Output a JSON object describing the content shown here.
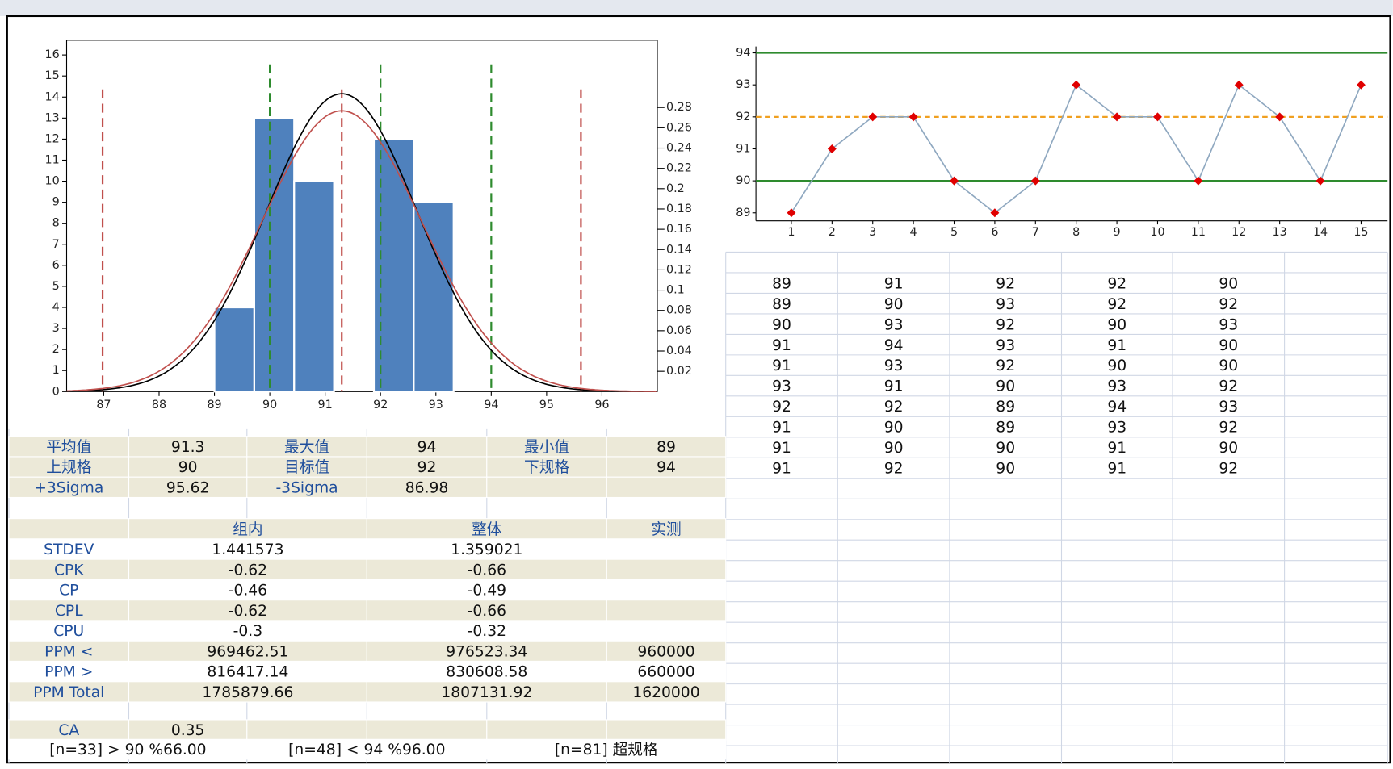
{
  "chart_data": [
    {
      "type": "histogram",
      "bins": [
        89,
        89.72,
        90.44,
        91.16,
        91.88,
        92.6,
        93.32
      ],
      "values": [
        4,
        13,
        10,
        0,
        12,
        9
      ],
      "color": "#4f81bd",
      "xlim": [
        86.33,
        97.0
      ],
      "xticks": [
        87,
        88,
        89,
        90,
        91,
        92,
        93,
        94,
        95,
        96
      ],
      "ylim": [
        0,
        16.7
      ],
      "yticks": [
        0,
        1,
        2,
        3,
        4,
        5,
        6,
        7,
        8,
        9,
        10,
        11,
        12,
        13,
        14,
        15,
        16
      ],
      "y2lim": [
        0,
        0.3463
      ],
      "y2ticks": [
        0.02,
        0.04,
        0.06,
        0.08,
        0.1,
        0.12,
        0.14,
        0.16,
        0.18,
        0.2,
        0.22,
        0.24,
        0.26,
        0.28
      ]
    },
    {
      "type": "line",
      "x": [
        1,
        2,
        3,
        4,
        5,
        6,
        7,
        8,
        9,
        10,
        11,
        12,
        13,
        14,
        15
      ],
      "values": [
        89,
        91,
        92,
        92,
        90,
        89,
        90,
        93,
        92,
        92,
        90,
        93,
        92,
        90,
        93
      ],
      "color": "#8fa8c0",
      "marker_color": "#e00000",
      "xlim": [
        0.13,
        15.65
      ],
      "xticks": [
        1,
        2,
        3,
        4,
        5,
        6,
        7,
        8,
        9,
        10,
        11,
        12,
        13,
        14,
        15
      ],
      "ylim": [
        88.75,
        94.2
      ],
      "yticks": [
        89,
        90,
        91,
        92,
        93,
        94
      ],
      "hlines": [
        {
          "value": 94,
          "color": "#2e8b2e"
        },
        {
          "value": 92,
          "color": "#f0a020"
        },
        {
          "value": 90,
          "color": "#2e8b2e"
        }
      ]
    }
  ],
  "stats": {
    "rows": [
      [
        "平均值",
        "91.3",
        "最大值",
        "94",
        "最小值",
        "89"
      ],
      [
        "上规格",
        "90",
        "目标值",
        "92",
        "下规格",
        "94"
      ],
      [
        "+3Sigma",
        "95.62",
        "-3Sigma",
        "86.98"
      ]
    ]
  },
  "capability": {
    "header": [
      "组内",
      "整体",
      "实测"
    ],
    "rows": [
      [
        "STDEV",
        "1.441573",
        "1.359021"
      ],
      [
        "CPK",
        "-0.62",
        "-0.66"
      ],
      [
        "CP",
        "-0.46",
        "-0.49"
      ],
      [
        "CPL",
        "-0.62",
        "-0.66"
      ],
      [
        "CPU",
        "-0.3",
        "-0.32"
      ],
      [
        "PPM <",
        "969462.51",
        "976523.34",
        "960000"
      ],
      [
        "PPM >",
        "816417.14",
        "830608.58",
        "660000"
      ],
      [
        "PPM Total",
        "1785879.66",
        "1807131.92",
        "1620000"
      ]
    ],
    "ca": [
      "CA",
      "0.35"
    ]
  },
  "summary": [
    "[n=33] > 90  %66.00",
    "[n=48] < 94  %96.00",
    "[n=81] 超规格"
  ],
  "data_grid": {
    "rows": [
      [
        "89",
        "91",
        "92",
        "92",
        "90"
      ],
      [
        "89",
        "90",
        "93",
        "92",
        "92"
      ],
      [
        "90",
        "93",
        "92",
        "90",
        "93"
      ],
      [
        "91",
        "94",
        "93",
        "91",
        "90"
      ],
      [
        "91",
        "93",
        "92",
        "90",
        "90"
      ],
      [
        "93",
        "91",
        "90",
        "93",
        "92"
      ],
      [
        "92",
        "92",
        "89",
        "94",
        "93"
      ],
      [
        "91",
        "90",
        "89",
        "93",
        "92"
      ],
      [
        "91",
        "90",
        "90",
        "91",
        "90"
      ],
      [
        "91",
        "92",
        "90",
        "91",
        "92"
      ]
    ]
  }
}
